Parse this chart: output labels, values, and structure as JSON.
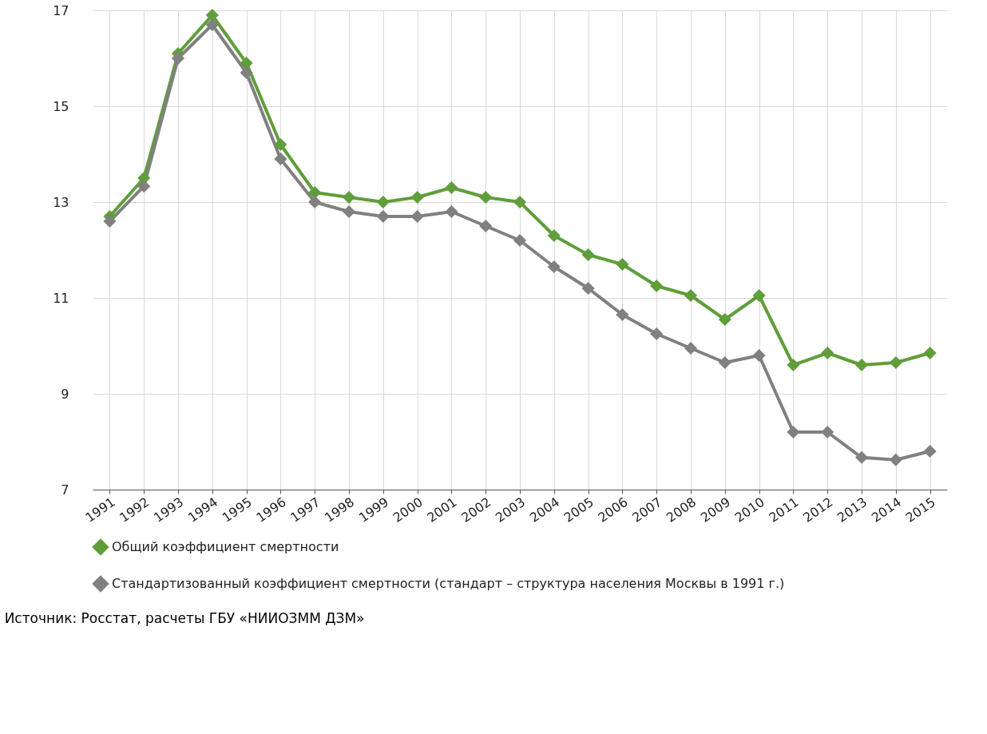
{
  "chart_data": {
    "type": "line",
    "categories": [
      "1991",
      "1992",
      "1993",
      "1994",
      "1995",
      "1996",
      "1997",
      "1998",
      "1999",
      "2000",
      "2001",
      "2002",
      "2003",
      "2004",
      "2005",
      "2006",
      "2007",
      "2008",
      "2009",
      "2010",
      "2011",
      "2012",
      "2013",
      "2014",
      "2015"
    ],
    "series": [
      {
        "name": "Общий коэффициент смертности",
        "color": "#5f9e3a",
        "values": [
          12.7,
          13.5,
          16.1,
          16.9,
          15.9,
          14.2,
          13.2,
          13.1,
          13.0,
          13.1,
          13.3,
          13.1,
          13.0,
          12.3,
          11.9,
          11.7,
          11.25,
          11.05,
          10.55,
          11.05,
          9.6,
          9.85,
          9.6,
          9.65,
          9.85
        ]
      },
      {
        "name": "Стандартизованный коэффициент смертности (стандарт – структура населения Москвы в 1991 г.)",
        "color": "#808080",
        "values": [
          12.6,
          13.33,
          16.0,
          16.7,
          15.7,
          13.9,
          13.0,
          12.8,
          12.7,
          12.7,
          12.8,
          12.5,
          12.2,
          11.65,
          11.2,
          10.65,
          10.25,
          9.95,
          9.65,
          9.8,
          8.2,
          8.2,
          7.67,
          7.62,
          7.8
        ]
      }
    ],
    "ylim": [
      7,
      17
    ],
    "yticks": [
      7,
      9,
      11,
      13,
      15,
      17
    ],
    "grid": true,
    "legend": "bottom",
    "marker": "diamond",
    "line_style": "solid",
    "annotations": [
      "Источник: Росстат, расчеты ГБУ «НИИОЗММ ДЗМ»"
    ]
  }
}
